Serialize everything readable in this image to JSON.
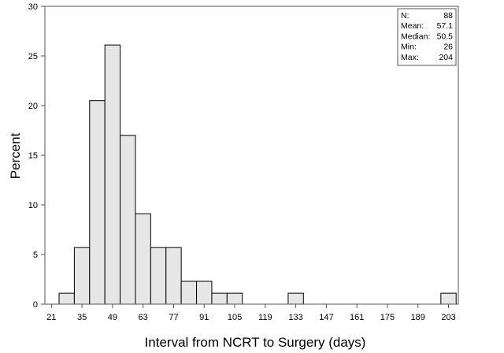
{
  "chart_data": {
    "type": "bar",
    "subtype": "histogram",
    "xlabel": "Interval from NCRT to Surgery (days)",
    "ylabel": "Percent",
    "ylim": [
      0,
      30
    ],
    "xlim": [
      18,
      207.5
    ],
    "yticks": [
      0,
      5,
      10,
      15,
      20,
      25,
      30
    ],
    "xticks": [
      21,
      35,
      49,
      63,
      77,
      91,
      105,
      119,
      133,
      147,
      161,
      175,
      189,
      203
    ],
    "bin_width": 7,
    "bins": [
      {
        "center": 28,
        "value": 1.1
      },
      {
        "center": 35,
        "value": 5.7
      },
      {
        "center": 42,
        "value": 20.5
      },
      {
        "center": 49,
        "value": 26.1
      },
      {
        "center": 56,
        "value": 17.0
      },
      {
        "center": 63,
        "value": 9.1
      },
      {
        "center": 70,
        "value": 5.7
      },
      {
        "center": 77,
        "value": 5.7
      },
      {
        "center": 84,
        "value": 2.3
      },
      {
        "center": 91,
        "value": 2.3
      },
      {
        "center": 98,
        "value": 1.1
      },
      {
        "center": 105,
        "value": 1.1
      },
      {
        "center": 133,
        "value": 1.1
      },
      {
        "center": 203,
        "value": 1.1
      }
    ],
    "bar_color": "#e6e6e6",
    "grid": false,
    "legend_position": "top-right"
  },
  "stats": [
    {
      "label": "N:",
      "value": "88"
    },
    {
      "label": "Mean:",
      "value": "57.1"
    },
    {
      "label": "Median:",
      "value": "50.5"
    },
    {
      "label": "Min:",
      "value": "26"
    },
    {
      "label": "Max:",
      "value": "204"
    }
  ]
}
